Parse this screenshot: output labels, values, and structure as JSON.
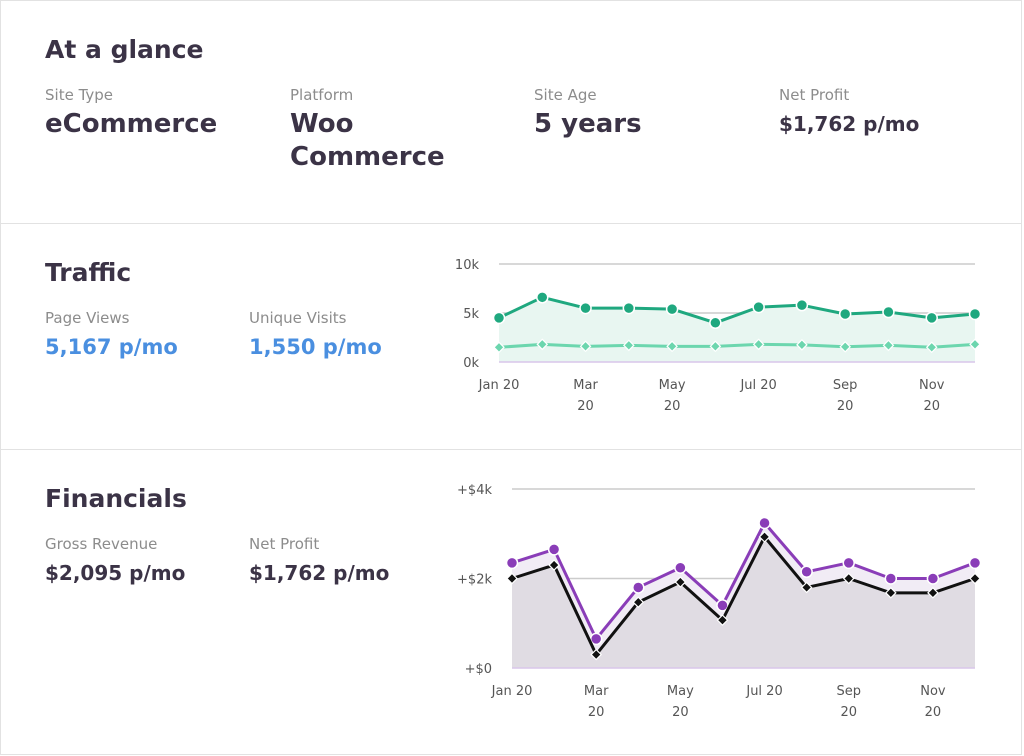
{
  "glance": {
    "title": "At a glance",
    "stats": [
      {
        "label": "Site Type",
        "value": "eCommerce"
      },
      {
        "label": "Platform",
        "value": "Woo Commerce"
      },
      {
        "label": "Site Age",
        "value": "5 years"
      },
      {
        "label": "Net Profit",
        "value": "$1,762 p/mo"
      }
    ]
  },
  "traffic": {
    "title": "Traffic",
    "stats": [
      {
        "label": "Page Views",
        "value": "5,167 p/mo"
      },
      {
        "label": "Unique Visits",
        "value": "1,550 p/mo"
      }
    ]
  },
  "financials": {
    "title": "Financials",
    "stats": [
      {
        "label": "Gross Revenue",
        "value": "$2,095 p/mo"
      },
      {
        "label": "Net Profit",
        "value": "$1,762 p/mo"
      }
    ]
  },
  "chart_data": [
    {
      "type": "line",
      "x": [
        "Jan 20",
        "Feb 20",
        "Mar 20",
        "Apr 20",
        "May 20",
        "Jun 20",
        "Jul 20",
        "Aug 20",
        "Sep 20",
        "Oct 20",
        "Nov 20",
        "Dec 20"
      ],
      "xticks": [
        [
          "Jan 20",
          ""
        ],
        [
          "Mar",
          "20"
        ],
        [
          "May",
          "20"
        ],
        [
          "Jul 20",
          ""
        ],
        [
          "Sep",
          "20"
        ],
        [
          "Nov",
          "20"
        ]
      ],
      "yticks": [
        "0k",
        "5k",
        "10k"
      ],
      "ylim": [
        0,
        10000
      ],
      "series": [
        {
          "values": [
            4500,
            6600,
            5500,
            5500,
            5400,
            4000,
            5600,
            5800,
            4900,
            5100,
            4500,
            4900
          ],
          "color": "#1fa87f",
          "marker": "circle",
          "fill": "#e8f6f1"
        },
        {
          "values": [
            1500,
            1800,
            1600,
            1700,
            1600,
            1600,
            1800,
            1750,
            1550,
            1700,
            1500,
            1800
          ],
          "color": "#6cd6ae",
          "marker": "diamond"
        }
      ]
    },
    {
      "type": "line",
      "x": [
        "Jan 20",
        "Feb 20",
        "Mar 20",
        "Apr 20",
        "May 20",
        "Jun 20",
        "Jul 20",
        "Aug 20",
        "Sep 20",
        "Oct 20",
        "Nov 20",
        "Dec 20"
      ],
      "xticks": [
        [
          "Jan 20",
          ""
        ],
        [
          "Mar",
          "20"
        ],
        [
          "May",
          "20"
        ],
        [
          "Jul 20",
          ""
        ],
        [
          "Sep",
          "20"
        ],
        [
          "Nov",
          "20"
        ]
      ],
      "yticks": [
        "+$0",
        "+$2k",
        "+$4k"
      ],
      "ylim": [
        0,
        4000
      ],
      "series": [
        {
          "values": [
            2350,
            2650,
            650,
            1800,
            2240,
            1400,
            3240,
            2150,
            2350,
            2000,
            2000,
            2350
          ],
          "color": "#8a3db8",
          "marker": "circle",
          "fill": "#f1ecf5"
        },
        {
          "values": [
            2000,
            2300,
            300,
            1470,
            1920,
            1070,
            2930,
            1800,
            2000,
            1680,
            1680,
            2000
          ],
          "color": "#111",
          "marker": "diamond",
          "fill": "#e0dce3"
        }
      ]
    }
  ]
}
